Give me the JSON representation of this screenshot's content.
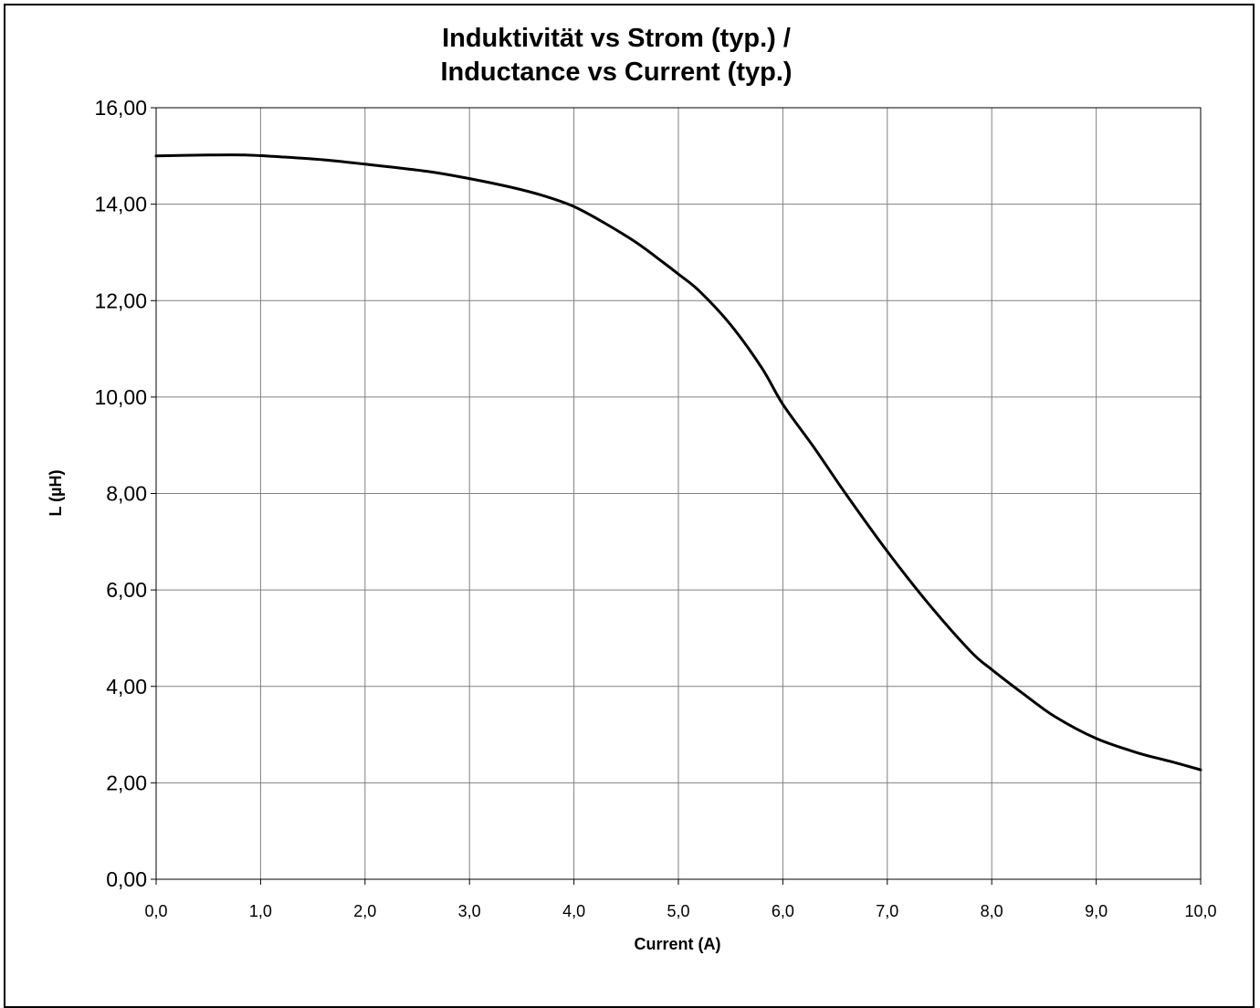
{
  "chart_data": {
    "type": "line",
    "title": "Induktivität vs Strom (typ.) /",
    "subtitle": "Inductance vs Current (typ.)",
    "xlabel": "Current (A)",
    "ylabel": "L (µH)",
    "xlim": [
      0,
      10
    ],
    "ylim": [
      0,
      16
    ],
    "x_ticks": [
      "0,0",
      "1,0",
      "2,0",
      "3,0",
      "4,0",
      "5,0",
      "6,0",
      "7,0",
      "8,0",
      "9,0",
      "10,0"
    ],
    "y_ticks": [
      "0,00",
      "2,00",
      "4,00",
      "6,00",
      "8,00",
      "10,00",
      "12,00",
      "14,00",
      "16,00"
    ],
    "grid": true,
    "line_color": "#000000",
    "grid_color": "#808080",
    "series": [
      {
        "x": [
          0,
          0.5,
          0.85,
          1.2,
          1.6,
          2.0,
          2.6,
          3.0,
          3.4,
          3.7,
          4.0,
          4.3,
          4.6,
          4.85,
          5.0,
          5.2,
          5.5,
          5.8,
          6.0,
          6.3,
          6.6,
          7.0,
          7.4,
          7.8,
          8.0,
          8.3,
          8.6,
          9.0,
          9.4,
          9.7,
          10.0
        ],
        "y": [
          15.0,
          15.02,
          15.02,
          14.98,
          14.92,
          14.83,
          14.68,
          14.53,
          14.35,
          14.18,
          13.95,
          13.6,
          13.2,
          12.8,
          12.55,
          12.2,
          11.5,
          10.6,
          9.85,
          8.95,
          8.0,
          6.8,
          5.7,
          4.72,
          4.35,
          3.85,
          3.38,
          2.92,
          2.62,
          2.45,
          2.27
        ]
      }
    ]
  }
}
